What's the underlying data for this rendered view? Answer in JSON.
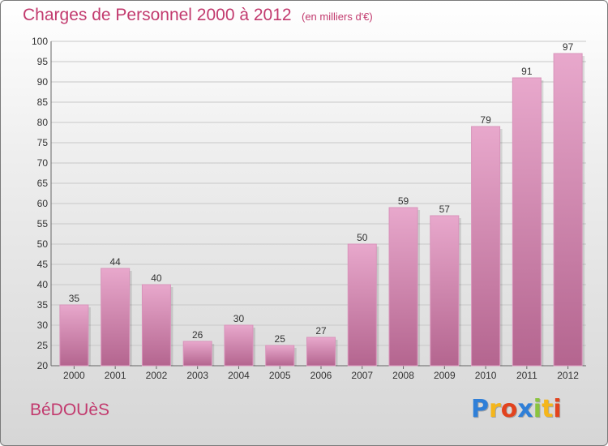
{
  "header": {
    "title": "Charges de Personnel 2000 à 2012",
    "subtitle": "(en milliers d'€)"
  },
  "footer": {
    "commune": "BéDOUèS",
    "logo_letters": [
      "P",
      "r",
      "o",
      "x",
      "i",
      "t",
      "i"
    ],
    "logo_colors": [
      "#2f7fd8",
      "#f5b61b",
      "#e2431e",
      "#2f7fd8",
      "#8ac43f",
      "#f5b61b",
      "#e2431e"
    ]
  },
  "colors": {
    "bar_top": "#e8a8cc",
    "bar_bottom": "#b4658f",
    "text_accent": "#c23a6e"
  },
  "chart_data": {
    "type": "bar",
    "categories": [
      "2000",
      "2001",
      "2002",
      "2003",
      "2004",
      "2005",
      "2006",
      "2007",
      "2008",
      "2009",
      "2010",
      "2011",
      "2012"
    ],
    "values": [
      35,
      44,
      40,
      26,
      30,
      25,
      27,
      50,
      59,
      57,
      79,
      91,
      97
    ],
    "title": "Charges de Personnel 2000 à 2012",
    "subtitle": "(en milliers d'€)",
    "ylim": [
      20,
      100
    ],
    "yticks": [
      20,
      25,
      30,
      35,
      40,
      45,
      50,
      55,
      60,
      65,
      70,
      75,
      80,
      85,
      90,
      95,
      100
    ],
    "grid": true,
    "data_labels": true
  }
}
